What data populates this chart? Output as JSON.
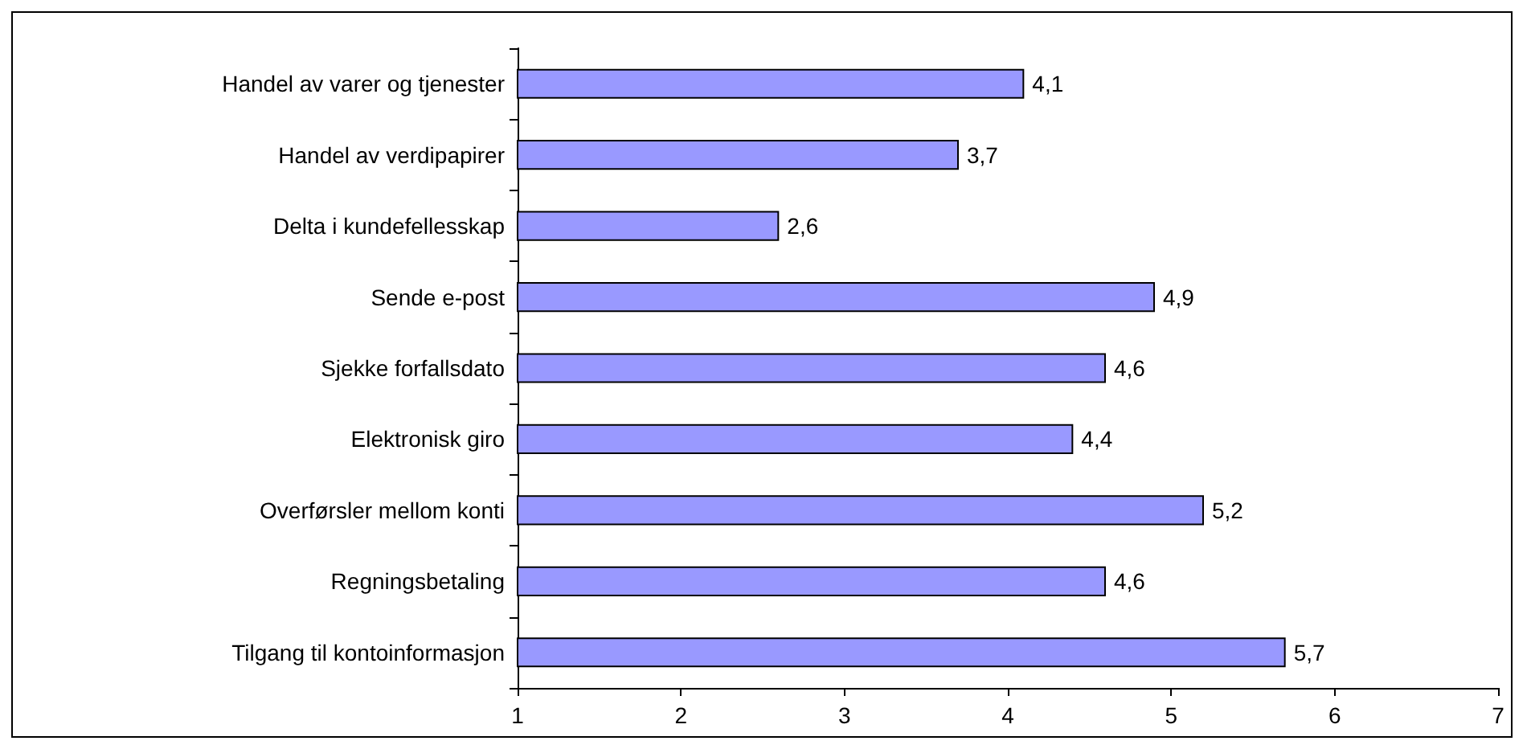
{
  "chart_data": {
    "type": "bar",
    "orientation": "horizontal",
    "categories": [
      "Handel av varer og tjenester",
      "Handel av verdipapirer",
      "Delta i kundefellesskap",
      "Sende e-post",
      "Sjekke forfallsdato",
      "Elektronisk giro",
      "Overførsler mellom konti",
      "Regningsbetaling",
      "Tilgang til kontoinformasjon"
    ],
    "values": [
      4.1,
      3.7,
      2.6,
      4.9,
      4.6,
      4.4,
      5.2,
      4.6,
      5.7
    ],
    "value_labels": [
      "4,1",
      "3,7",
      "2,6",
      "4,9",
      "4,6",
      "4,4",
      "5,2",
      "4,6",
      "5,7"
    ],
    "color": "#9999ff",
    "xlim": [
      1,
      7
    ],
    "xticks": [
      1,
      2,
      3,
      4,
      5,
      6,
      7
    ]
  }
}
